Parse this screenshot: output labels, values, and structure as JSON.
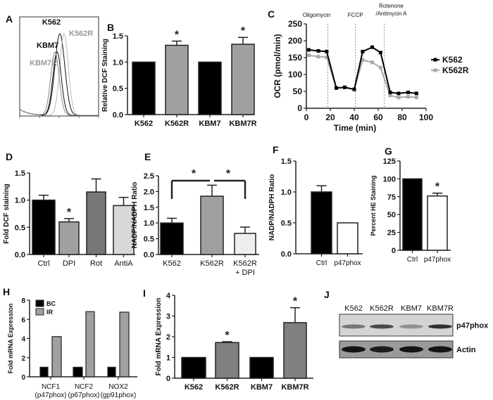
{
  "chart_data": [
    {
      "panel": "A",
      "type": "line",
      "labels": [
        "K562",
        "K562R",
        "KBM7",
        "KBM7R"
      ],
      "label_colors": [
        "#111111",
        "#999999",
        "#111111",
        "#999999"
      ]
    },
    {
      "panel": "B",
      "type": "bar",
      "categories": [
        "K562",
        "K562R",
        "KBM7",
        "KBM7R"
      ],
      "values": [
        1.0,
        1.32,
        1.0,
        1.34
      ],
      "errors": [
        0,
        0.08,
        0,
        0.13
      ],
      "significant": [
        false,
        true,
        false,
        true
      ],
      "fills": [
        "#000000",
        "#a0a0a0",
        "#000000",
        "#a0a0a0"
      ],
      "ylabel": "Relative DCF Staining",
      "ylim": [
        0,
        1.5
      ],
      "yticks": [
        0,
        0.5,
        1.0,
        1.5
      ],
      "ytick_labels": [
        "0.0",
        "0.5",
        "1.0",
        "1.5"
      ]
    },
    {
      "panel": "C",
      "type": "line",
      "x": [
        2,
        10,
        17,
        25,
        32,
        40,
        47,
        55,
        62,
        70,
        77,
        85,
        92
      ],
      "series": [
        {
          "name": "K562",
          "color": "#000000",
          "values": [
            173,
            170,
            168,
            60,
            62,
            56,
            168,
            181,
            165,
            47,
            44,
            47,
            44
          ]
        },
        {
          "name": "K562R",
          "color": "#a8a8a8",
          "values": [
            157,
            153,
            151,
            60,
            62,
            56,
            143,
            136,
            120,
            38,
            32,
            34,
            32
          ]
        }
      ],
      "injections": [
        {
          "x": 18,
          "label": "Oligomycin"
        },
        {
          "x": 41,
          "label": "FCCP"
        },
        {
          "x": 65,
          "label": "Rotenone",
          "label2": "/Antimycin A"
        }
      ],
      "xlabel": "Time  (min)",
      "ylabel": "OCR (pmol/min)",
      "xlim": [
        0,
        100
      ],
      "ylim": [
        0,
        250
      ],
      "xticks": [
        0,
        20,
        40,
        60,
        80,
        100
      ],
      "yticks": [
        0,
        50,
        100,
        150,
        200,
        250
      ],
      "legend": "right"
    },
    {
      "panel": "D",
      "type": "bar",
      "categories": [
        "Ctrl",
        "DPI",
        "Rot",
        "AntiA"
      ],
      "values": [
        1.0,
        0.6,
        1.15,
        0.9
      ],
      "errors": [
        0.09,
        0.06,
        0.24,
        0.15
      ],
      "significant": [
        false,
        true,
        false,
        false
      ],
      "fills": [
        "#000000",
        "#a0a0a0",
        "#777777",
        "#d8d8d8"
      ],
      "ylabel": "Fold  DCF staining",
      "ylim": [
        0,
        1.5
      ],
      "yticks": [
        0,
        0.5,
        1.0,
        1.5
      ],
      "ytick_labels": [
        "0.0",
        "0.5",
        "1.0",
        "1.5"
      ]
    },
    {
      "panel": "E",
      "type": "bar",
      "categories": [
        "K562",
        "K562R",
        "K562R"
      ],
      "category_sublabels": [
        "",
        "",
        "+ DPI"
      ],
      "values": [
        1.0,
        1.85,
        0.67
      ],
      "errors": [
        0.15,
        0.35,
        0.2
      ],
      "fills": [
        "#000000",
        "#a0a0a0",
        "#eeeeee"
      ],
      "comparisons": [
        {
          "from": 0,
          "to": 1,
          "label": "*"
        },
        {
          "from": 1,
          "to": 2,
          "label": "*"
        }
      ],
      "ylabel": "NADP/NADPH Ratio",
      "ylim": [
        0,
        2.5
      ],
      "yticks": [
        0,
        0.5,
        1.0,
        1.5,
        2.0,
        2.5
      ],
      "ytick_labels": [
        "0.0",
        "0.5",
        "1.0",
        "1.5",
        "2.0",
        "2.5"
      ]
    },
    {
      "panel": "F",
      "type": "bar",
      "categories": [
        "Ctrl",
        "p47phox"
      ],
      "values": [
        1.0,
        0.5
      ],
      "errors": [
        0.1,
        0
      ],
      "significant": [
        false,
        false
      ],
      "fills": [
        "#000000",
        "#ffffff"
      ],
      "ylabel": "NADP/NADPH Ratio",
      "ylim": [
        0,
        1.5
      ],
      "yticks": [
        0,
        0.5,
        1.0,
        1.5
      ],
      "ytick_labels": [
        "0.0",
        "0.5",
        "1.0",
        "1.5"
      ]
    },
    {
      "panel": "G",
      "type": "bar",
      "categories": [
        "Ctrl",
        "p47phox"
      ],
      "values": [
        100,
        76
      ],
      "errors": [
        0,
        4
      ],
      "significant": [
        false,
        true
      ],
      "fills": [
        "#000000",
        "#ffffff"
      ],
      "ylabel": "Percent HE Staining",
      "ylim": [
        0,
        125
      ],
      "yticks": [
        0,
        25,
        50,
        75,
        100,
        125
      ],
      "ytick_labels": [
        "0",
        "25",
        "50",
        "75",
        "100",
        "125"
      ]
    },
    {
      "panel": "H",
      "type": "bar",
      "categories": [
        "NCF1",
        "NCF2",
        "NOX2"
      ],
      "category_sublabels": [
        "(p47phox)",
        "(p67phox)",
        "(gp91phox)"
      ],
      "series": [
        {
          "name": "BC",
          "color": "#000000",
          "values": [
            1,
            1,
            1
          ]
        },
        {
          "name": "IR",
          "color": "#a0a0a0",
          "values": [
            4.2,
            6.8,
            6.75
          ]
        }
      ],
      "ylabel": "Fold mRNA Expression",
      "ylim": [
        0,
        8
      ],
      "yticks": [
        0,
        2,
        4,
        6,
        8
      ],
      "ytick_labels": [
        "0",
        "2",
        "4",
        "6",
        "8"
      ],
      "legend": "top-left"
    },
    {
      "panel": "I",
      "type": "bar",
      "categories": [
        "K562",
        "K562R",
        "KBM7",
        "KBM7R"
      ],
      "values": [
        1,
        1.72,
        1,
        2.68
      ],
      "errors": [
        0,
        0.04,
        0,
        0.72
      ],
      "significant": [
        false,
        true,
        false,
        true
      ],
      "fills": [
        "#000000",
        "#808080",
        "#000000",
        "#808080"
      ],
      "ylabel": "Fold mRNA Expression",
      "ylim": [
        0,
        4
      ],
      "yticks": [
        0,
        1,
        2,
        3,
        4
      ],
      "ytick_labels": [
        "0",
        "1",
        "2",
        "3",
        "4"
      ]
    },
    {
      "panel": "J",
      "type": "table",
      "lanes": [
        "K562",
        "K562R",
        "KBM7",
        "KBM7R"
      ],
      "rows": [
        {
          "label": "p47phox",
          "band_intensity": [
            0.45,
            0.7,
            0.3,
            0.85
          ]
        },
        {
          "label": "Actin",
          "band_intensity": [
            1,
            0.95,
            1,
            1
          ]
        }
      ]
    }
  ]
}
